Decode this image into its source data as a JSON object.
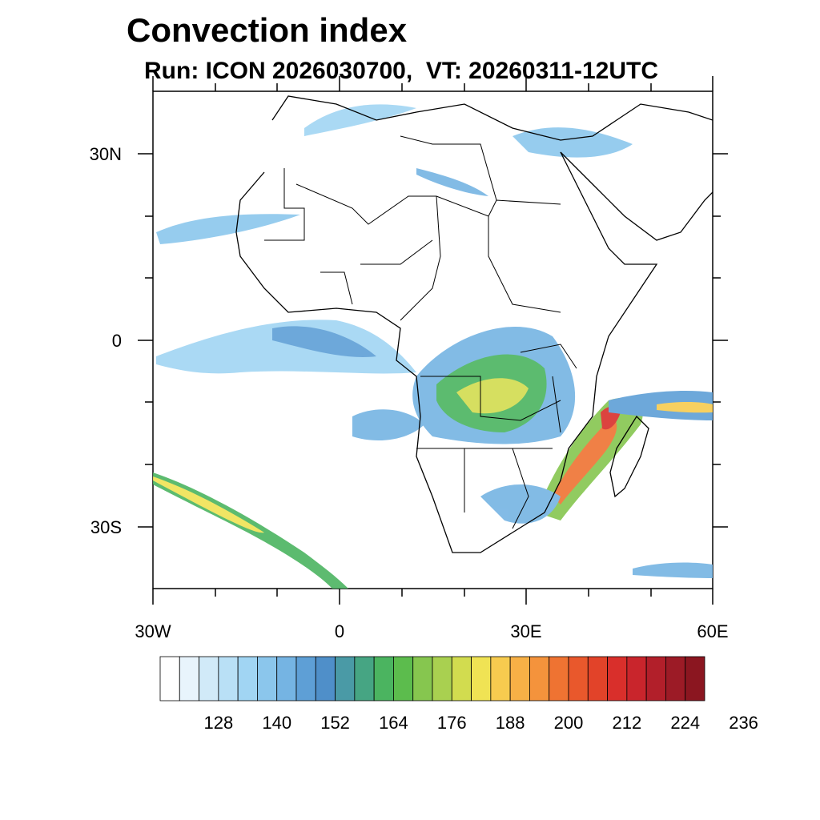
{
  "title": "Convection index",
  "subtitle": "Run: ICON 2026030700,  VT: 20260311-12UTC",
  "lat_labels": [
    "30N",
    "0",
    "30S"
  ],
  "lon_labels": [
    "30W",
    "0",
    "30E",
    "60E"
  ],
  "colorbar": {
    "labels": [
      "128",
      "140",
      "152",
      "164",
      "176",
      "188",
      "200",
      "212",
      "224",
      "236"
    ],
    "colors": [
      "#ffffff",
      "#e8f4fc",
      "#d1eaf8",
      "#b9e0f6",
      "#a1d5f3",
      "#8bc6ec",
      "#75b4e3",
      "#5e9fd6",
      "#4f8fc9",
      "#4a9aa6",
      "#46a583",
      "#4bb460",
      "#5cbc4d",
      "#86c64f",
      "#a9d050",
      "#d2dc4f",
      "#f0e354",
      "#f7cb4f",
      "#f7b046",
      "#f4933c",
      "#ef7332",
      "#e9582c",
      "#e24329",
      "#d92f2b",
      "#c9252c",
      "#b21f2a",
      "#9c1b26",
      "#8b1620"
    ]
  },
  "map": {
    "region": "Africa",
    "field": "Convection index"
  }
}
